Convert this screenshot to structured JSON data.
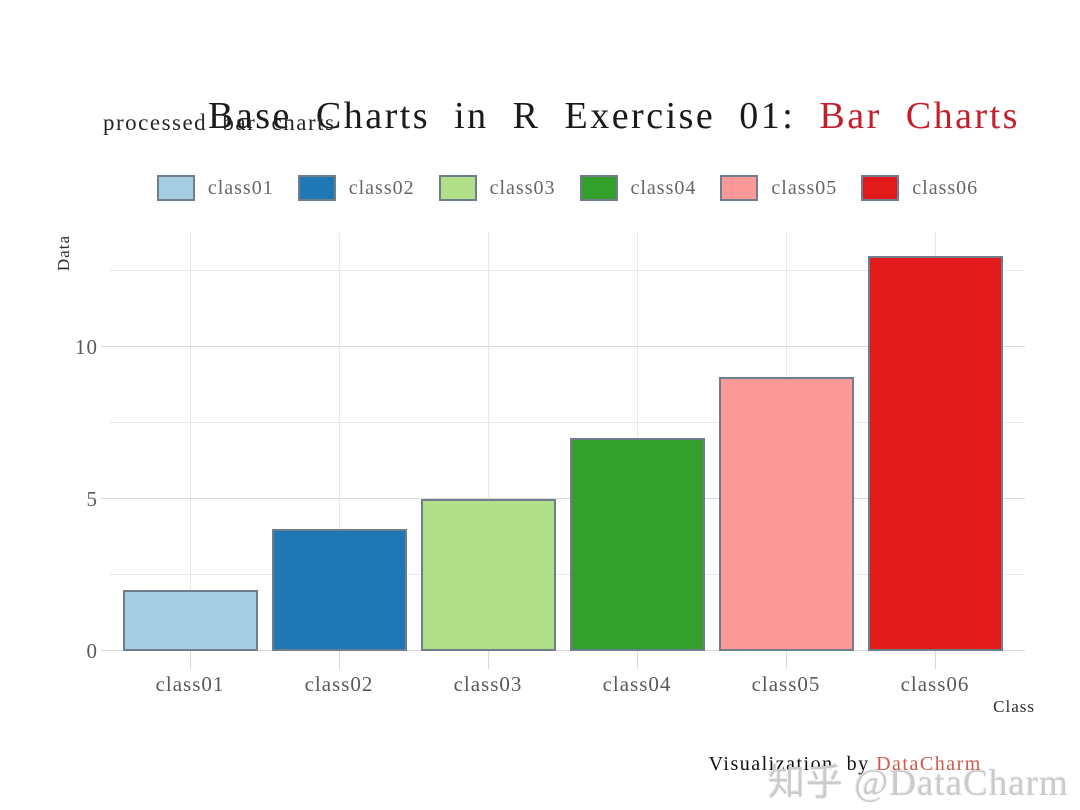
{
  "header": {
    "title_main": "Base Charts in R Exercise 01: ",
    "title_accent": "Bar Charts",
    "subtitle": "processed bar charts"
  },
  "chart_data": {
    "type": "bar",
    "title": "Base Charts in R Exercise 01: Bar Charts",
    "subtitle": "processed bar charts",
    "categories": [
      "class01",
      "class02",
      "class03",
      "class04",
      "class05",
      "class06"
    ],
    "values": [
      2,
      4,
      5,
      7,
      9,
      13
    ],
    "bar_colors": [
      "#A6CEE3",
      "#1F78B4",
      "#B2DF8A",
      "#33A02C",
      "#FB9A99",
      "#E31A1C"
    ],
    "xlabel": "Class",
    "ylabel": "Data",
    "ylim": [
      0,
      13.75
    ],
    "yticks": [
      0,
      5,
      10
    ],
    "minor_yticks": [
      2.5,
      7.5,
      12.5
    ],
    "grid": true,
    "legend": {
      "position": "top",
      "labels": [
        "class01",
        "class02",
        "class03",
        "class04",
        "class05",
        "class06"
      ]
    }
  },
  "footer": {
    "credit_prefix": "Visualization  by ",
    "credit_accent": "DataCharm"
  },
  "watermark": {
    "text": "知乎 @DataCharm"
  },
  "colors": {
    "title_accent": "#C2202E",
    "footer_accent": "#CD5A4E",
    "bar_border": "#6F7D8C",
    "grid_major": "#DBDBDB",
    "grid_minor": "#E7E7E7",
    "tick_mark": "#D9D9D9",
    "axis_text": "#595959",
    "watermark_text": "#CBCBCB"
  }
}
